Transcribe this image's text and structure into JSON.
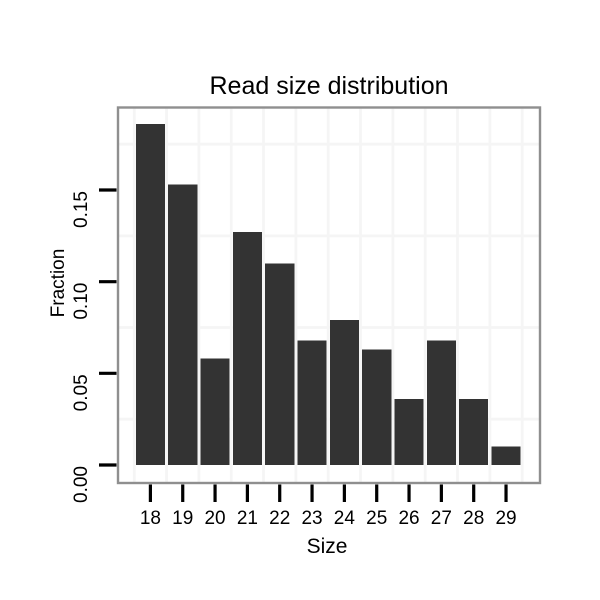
{
  "chart_data": {
    "type": "bar",
    "title": "Read size distribution",
    "xlabel": "Size",
    "ylabel": "Fraction",
    "categories": [
      18,
      19,
      20,
      21,
      22,
      23,
      24,
      25,
      26,
      27,
      28,
      29
    ],
    "values": [
      0.186,
      0.153,
      0.058,
      0.127,
      0.11,
      0.068,
      0.079,
      0.063,
      0.036,
      0.068,
      0.036,
      0.01
    ],
    "x_tick_labels": [
      "18",
      "19",
      "20",
      "21",
      "22",
      "23",
      "24",
      "25",
      "26",
      "27",
      "28",
      "29"
    ],
    "y_ticks": [
      {
        "value": 0.0,
        "label": "0.00"
      },
      {
        "value": 0.05,
        "label": "0.05"
      },
      {
        "value": 0.1,
        "label": "0.10"
      },
      {
        "value": 0.15,
        "label": "0.15"
      }
    ],
    "ylim": [
      -0.0093,
      0.1949
    ],
    "bar_width_fraction": 0.9,
    "legend": "none",
    "grid": {
      "visible": "minor-only",
      "horizontal_minor": [
        0.025,
        0.075,
        0.125,
        0.175
      ],
      "vertical_minor_half_step": true
    },
    "style": {
      "bar_color": "#333333",
      "panel_border_color": "#8f8f8f",
      "grid_color": "#f5f5f5",
      "tick_color": "#000000",
      "text_color": "#000000",
      "background_color": "#ffffff"
    }
  }
}
